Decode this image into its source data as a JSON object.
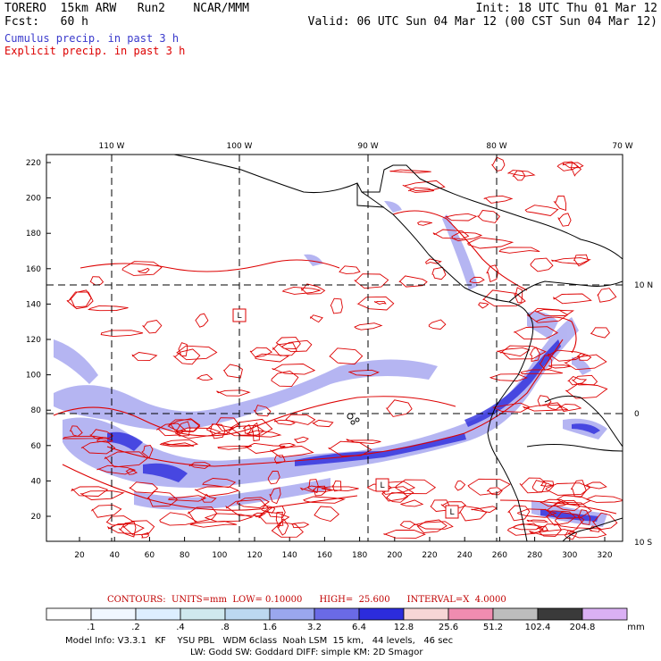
{
  "header": {
    "line1_left": "TORERO  15km ARW   Run2    NCAR/MMM",
    "line1_right": "Init: 18 UTC Thu 01 Mar 12",
    "line2_left": "Fcst:   60 h",
    "line2_right": "Valid: 06 UTC Sun 04 Mar 12 (00 CST Sun 04 Mar 12)"
  },
  "legend": {
    "cumulus": "Cumulus precip. in past 3 h",
    "explicit": "Explicit precip. in past 3 h",
    "cumulus_color": "#3a3acc",
    "explicit_color": "#dd0000"
  },
  "map": {
    "lon_labels": [
      "110 W",
      "100 W",
      "90 W",
      "80 W",
      "70 W"
    ],
    "lat_labels": [
      "10 N",
      "0",
      "10 S"
    ],
    "y_ticks": [
      "220",
      "200",
      "180",
      "160",
      "140",
      "120",
      "100",
      "80",
      "60",
      "40",
      "20"
    ],
    "x_ticks": [
      "20",
      "40",
      "60",
      "80",
      "100",
      "120",
      "140",
      "160",
      "180",
      "200",
      "220",
      "240",
      "260",
      "280",
      "300",
      "320"
    ],
    "low_markers": [
      "L",
      "L",
      "L"
    ],
    "gridline_color": "#000000",
    "contour_color": "#dd0000",
    "precip_color": "#3030dd"
  },
  "contours_info": {
    "text": "CONTOURS:  UNITS=mm  LOW= 0.10000      HIGH=  25.600      INTERVAL=X  4.0000"
  },
  "colorbar": {
    "labels": [
      ".1",
      ".2",
      ".4",
      ".8",
      "1.6",
      "3.2",
      "6.4",
      "12.8",
      "25.6",
      "51.2",
      "102.4",
      "204.8"
    ],
    "units": "mm",
    "colors": [
      "#ffffff",
      "#f0f7ff",
      "#ddeeff",
      "#cfe9ee",
      "#bcd8f0",
      "#9aa7ee",
      "#6a6ae6",
      "#2c2cdc",
      "#f7d6d6",
      "#f08cb0",
      "#bdbdbd",
      "#3a3a3a",
      "#dab0f4"
    ]
  },
  "footer": {
    "line1": "Model Info: V3.3.1   KF    YSU PBL   WDM 6class  Noah LSM  15 km,   44 levels,   46 sec",
    "line2": "LW: Godd SW: Goddard DIFF: simple KM: 2D Smagor"
  }
}
